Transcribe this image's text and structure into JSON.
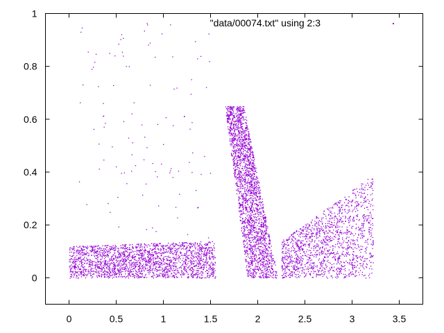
{
  "chart_data": {
    "type": "scatter",
    "title": "",
    "xlabel": "",
    "ylabel": "",
    "xlim": [
      -0.25,
      3.75
    ],
    "ylim": [
      -0.1,
      1.0
    ],
    "xticks": [
      "0",
      "0.5",
      "1",
      "1.5",
      "2",
      "2.5",
      "3",
      "3.5"
    ],
    "yticks": [
      "0",
      "0.2",
      "0.4",
      "0.6",
      "0.8",
      "1"
    ],
    "grid": false,
    "legend_position": "top-right",
    "series": [
      {
        "name": "\"data/00074.txt\" using 2:3",
        "color": "#9400d3",
        "marker": "dot",
        "regions": [
          {
            "shape": "slab",
            "x": [
              0.0,
              1.55
            ],
            "y_bottom": 0.0,
            "y_top_start": 0.12,
            "y_top_end": 0.14
          },
          {
            "shape": "plume",
            "x_base": [
              1.5,
              2.2
            ],
            "peak": [
              1.8,
              0.65
            ],
            "y_bottom": 0.0
          },
          {
            "shape": "block",
            "x": [
              2.25,
              3.22
            ],
            "y_bottom": 0.0,
            "y_top_start": 0.14,
            "y_top_end": 0.39
          },
          {
            "shape": "spray",
            "x": [
              0.1,
              1.5
            ],
            "y": [
              0.15,
              0.97
            ]
          }
        ]
      }
    ]
  }
}
